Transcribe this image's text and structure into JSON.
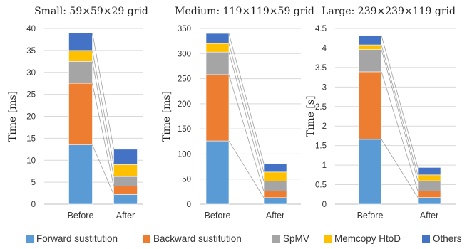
{
  "chart_data": [
    {
      "type": "bar",
      "stacked": true,
      "title": "Small: 59×59×29 grid",
      "ylabel": "Time [ms]",
      "ylim": [
        0,
        40
      ],
      "yticks": [
        "0",
        "5",
        "10",
        "15",
        "20",
        "25",
        "30",
        "35",
        "40"
      ],
      "ytick_values": [
        0,
        5,
        10,
        15,
        20,
        25,
        30,
        35,
        40
      ],
      "categories": [
        "Before",
        "After"
      ],
      "series": [
        {
          "name": "Forward sustitution",
          "values": [
            13.5,
            2.2
          ]
        },
        {
          "name": "Backward sustitution",
          "values": [
            14.0,
            1.9
          ]
        },
        {
          "name": "SpMV",
          "values": [
            5.0,
            2.2
          ]
        },
        {
          "name": "Memcopy HtoD",
          "values": [
            2.5,
            2.7
          ]
        },
        {
          "name": "Others",
          "values": [
            4.0,
            3.5
          ]
        }
      ]
    },
    {
      "type": "bar",
      "stacked": true,
      "title": "Medium: 119×119×59 grid",
      "ylabel": "Time [ms]",
      "ylim": [
        0,
        350
      ],
      "yticks": [
        "0",
        "50",
        "100",
        "150",
        "200",
        "250",
        "300",
        "350"
      ],
      "ytick_values": [
        0,
        50,
        100,
        150,
        200,
        250,
        300,
        350
      ],
      "categories": [
        "Before",
        "After"
      ],
      "series": [
        {
          "name": "Forward sustitution",
          "values": [
            126,
            13
          ]
        },
        {
          "name": "Backward sustitution",
          "values": [
            132,
            13
          ]
        },
        {
          "name": "SpMV",
          "values": [
            45,
            20
          ]
        },
        {
          "name": "Memcopy HtoD",
          "values": [
            17,
            18
          ]
        },
        {
          "name": "Others",
          "values": [
            20,
            17
          ]
        }
      ]
    },
    {
      "type": "bar",
      "stacked": true,
      "title": "Large: 239×239×119 grid",
      "ylabel": "Time [s]",
      "ylim": [
        0,
        4.5
      ],
      "yticks": [
        "0",
        "0.5",
        "1",
        "1.5",
        "2",
        "2.5",
        "3",
        "3.5",
        "4",
        "4.5"
      ],
      "ytick_values": [
        0,
        0.5,
        1,
        1.5,
        2,
        2.5,
        3,
        3.5,
        4,
        4.5
      ],
      "categories": [
        "Before",
        "After"
      ],
      "series": [
        {
          "name": "Forward sustitution",
          "values": [
            1.66,
            0.17
          ]
        },
        {
          "name": "Backward sustitution",
          "values": [
            1.73,
            0.17
          ]
        },
        {
          "name": "SpMV",
          "values": [
            0.57,
            0.26
          ]
        },
        {
          "name": "Memcopy HtoD",
          "values": [
            0.12,
            0.15
          ]
        },
        {
          "name": "Others",
          "values": [
            0.24,
            0.19
          ]
        }
      ]
    }
  ],
  "colors": [
    "#5b9bd5",
    "#ed7d31",
    "#a5a5a5",
    "#ffc000",
    "#4472c4"
  ],
  "legend": {
    "placement": "bottom",
    "items": [
      {
        "label": "Forward sustitution",
        "color": "#5b9bd5"
      },
      {
        "label": "Backward sustitution",
        "color": "#ed7d31"
      },
      {
        "label": "SpMV",
        "color": "#a5a5a5"
      },
      {
        "label": "Memcopy HtoD",
        "color": "#ffc000"
      },
      {
        "label": "Others",
        "color": "#4472c4"
      }
    ]
  }
}
